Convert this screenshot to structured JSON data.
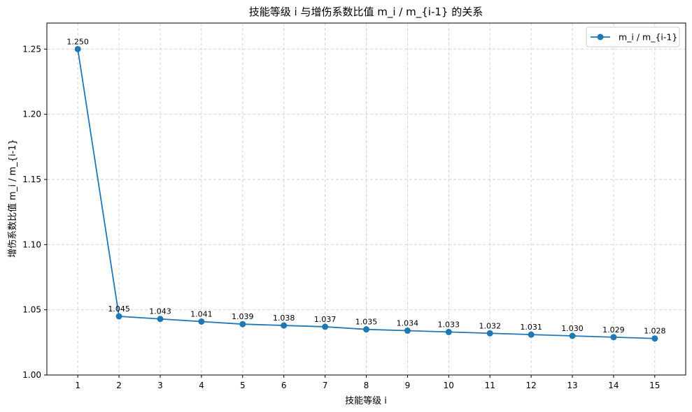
{
  "chart_data": {
    "type": "line",
    "title": "技能等级 i 与增伤系数比值 m_i / m_{i-1} 的关系",
    "xlabel": "技能等级 i",
    "ylabel": "增伤系数比值 m_i / m_{i-1}",
    "x": [
      1,
      2,
      3,
      4,
      5,
      6,
      7,
      8,
      9,
      10,
      11,
      12,
      13,
      14,
      15
    ],
    "x_tick_labels": [
      "1",
      "2",
      "3",
      "4",
      "5",
      "6",
      "7",
      "8",
      "9",
      "10",
      "11",
      "12",
      "13",
      "14",
      "15"
    ],
    "y_ticks": [
      1.0,
      1.05,
      1.1,
      1.15,
      1.2,
      1.25
    ],
    "y_tick_labels": [
      "1.00",
      "1.05",
      "1.10",
      "1.15",
      "1.20",
      "1.25"
    ],
    "xlim": [
      0.25,
      15.75
    ],
    "ylim": [
      1.0,
      1.27
    ],
    "grid": true,
    "legend_position": "top-right",
    "series": [
      {
        "name": "m_i / m_{i-1}",
        "color": "#1f77b4",
        "marker": "circle",
        "values": [
          1.25,
          1.045,
          1.043,
          1.041,
          1.039,
          1.038,
          1.037,
          1.035,
          1.034,
          1.033,
          1.032,
          1.031,
          1.03,
          1.029,
          1.028
        ],
        "data_labels": [
          "1.250",
          "1.045",
          "1.043",
          "1.041",
          "1.039",
          "1.038",
          "1.037",
          "1.035",
          "1.034",
          "1.033",
          "1.032",
          "1.031",
          "1.030",
          "1.029",
          "1.028"
        ]
      }
    ]
  }
}
